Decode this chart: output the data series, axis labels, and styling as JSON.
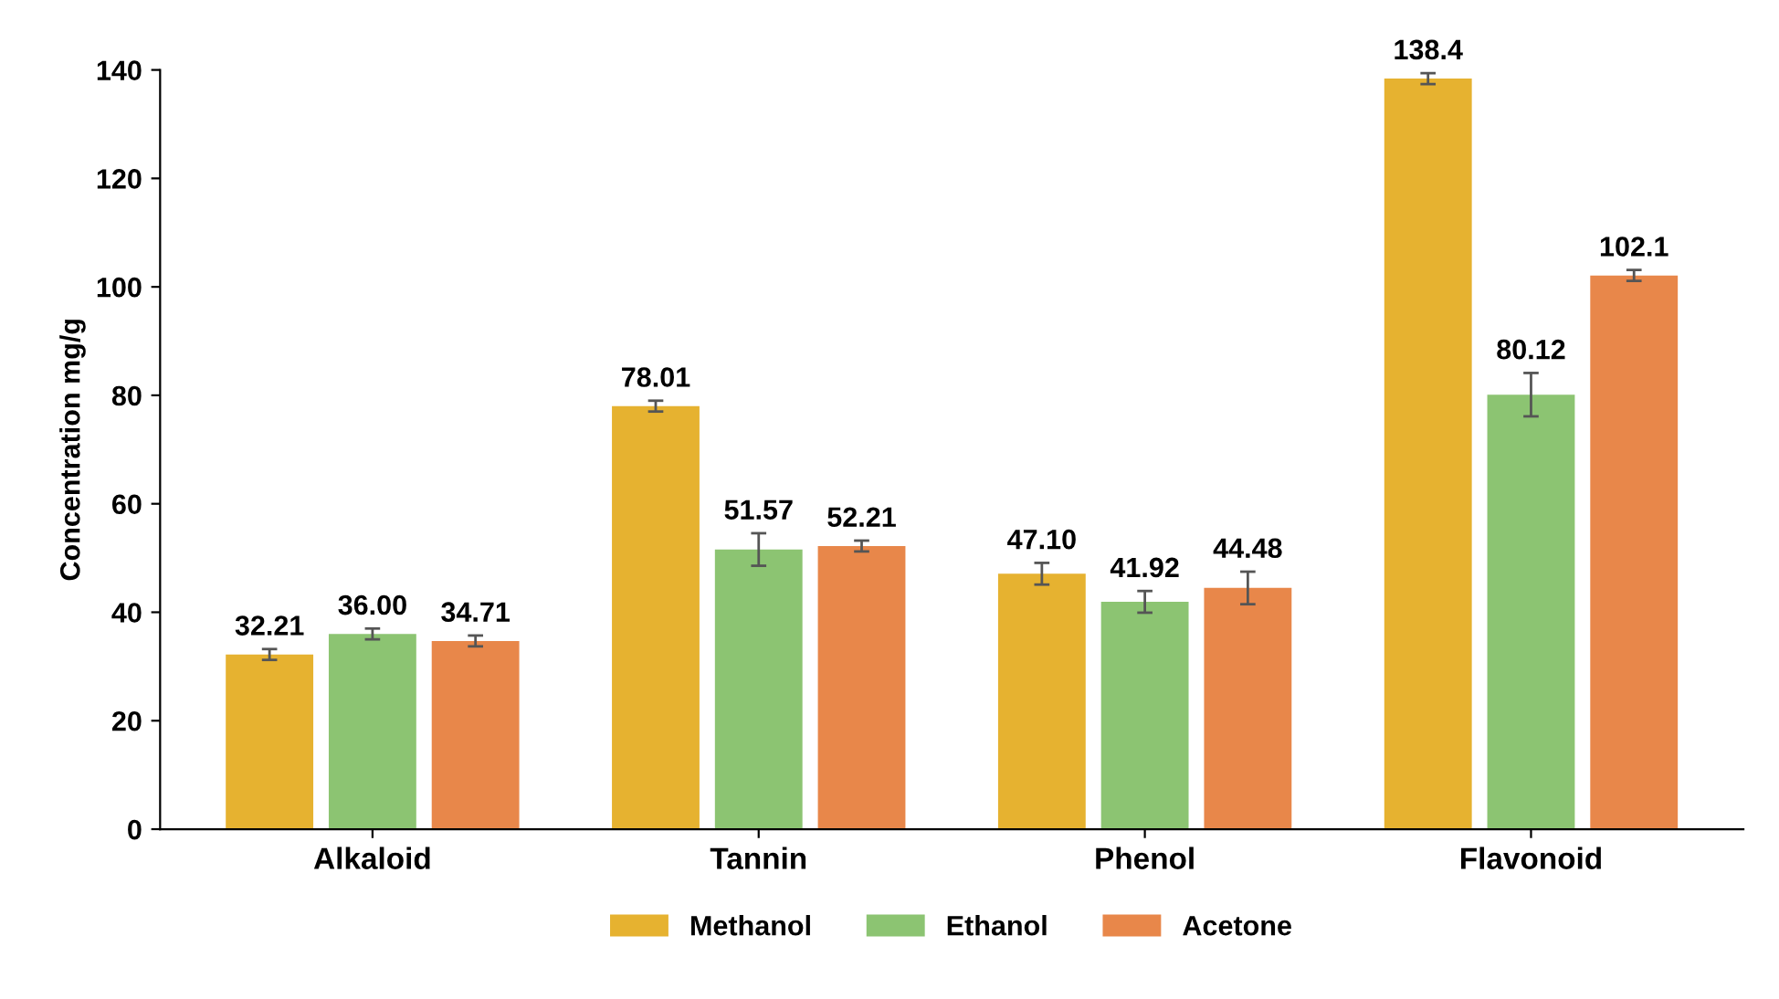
{
  "chart_data": {
    "type": "bar",
    "ylabel": "Concentration mg/g",
    "categories": [
      "Alkaloid",
      "Tannin",
      "Phenol",
      "Flavonoid"
    ],
    "series": [
      {
        "name": "Methanol",
        "color": "#e6b230",
        "values": [
          32.21,
          78.01,
          47.1,
          138.4
        ],
        "errors": [
          1,
          1,
          2,
          1
        ]
      },
      {
        "name": "Ethanol",
        "color": "#8cc472",
        "values": [
          36.0,
          51.57,
          41.92,
          80.12
        ],
        "errors": [
          1,
          3,
          2,
          4
        ]
      },
      {
        "name": "Acetone",
        "color": "#e8874a",
        "values": [
          34.71,
          52.21,
          44.48,
          102.1
        ],
        "errors": [
          1,
          1,
          3,
          1
        ]
      }
    ],
    "value_labels": [
      [
        "32.21",
        "78.01",
        "47.10",
        "138.4"
      ],
      [
        "36.00",
        "51.57",
        "41.92",
        "80.12"
      ],
      [
        "34.71",
        "52.21",
        "44.48",
        "102.1"
      ]
    ],
    "ylim": [
      0,
      140
    ],
    "yticks": [
      0,
      20,
      40,
      60,
      80,
      100,
      120,
      140
    ],
    "grid": false,
    "legend": "bottom"
  }
}
